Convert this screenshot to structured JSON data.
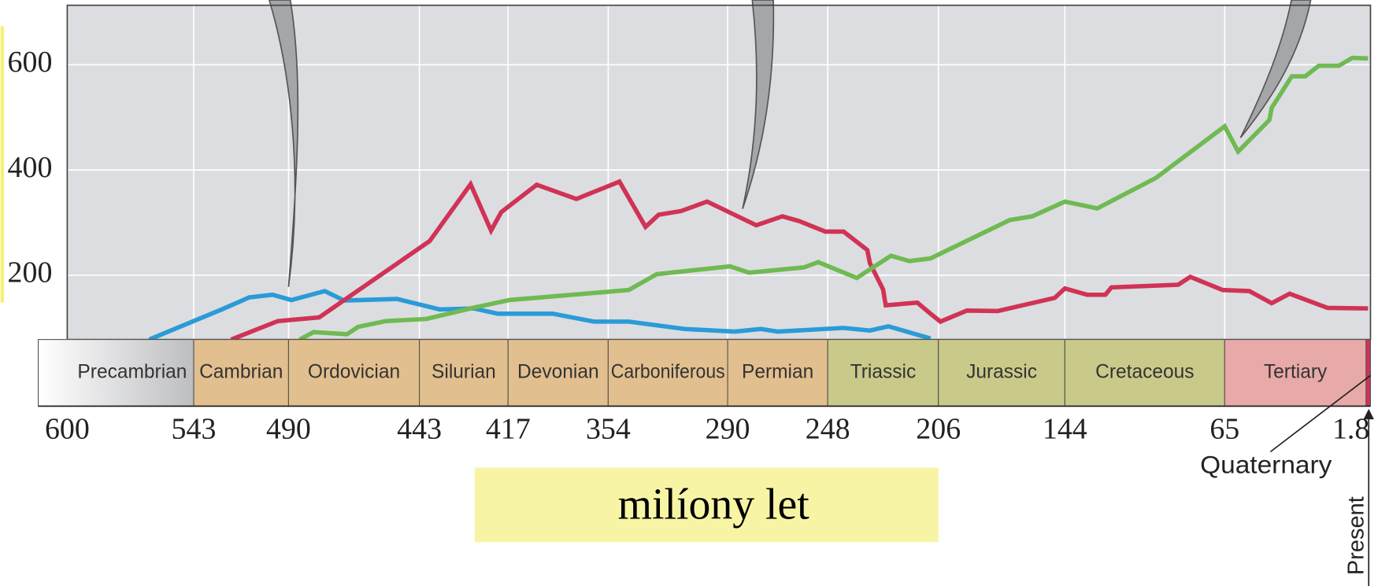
{
  "chart_data": {
    "type": "line",
    "x_label": "milíony let",
    "ylim": [
      78,
      713
    ],
    "yticks": [
      200,
      400,
      600
    ],
    "xticks": [
      600,
      543,
      490,
      443,
      417,
      354,
      290,
      248,
      206,
      144,
      65,
      1.8,
      {
        "value": 0,
        "label": "Present"
      }
    ],
    "grid": true,
    "periods": [
      {
        "name": "Precambrian",
        "color": "#bdbec1",
        "fade": true
      },
      {
        "name": "Cambrian",
        "color": "#e2bf8e"
      },
      {
        "name": "Ordovician",
        "color": "#e2bf8e"
      },
      {
        "name": "Silurian",
        "color": "#e2bf8e"
      },
      {
        "name": "Devonian",
        "color": "#e2bf8e"
      },
      {
        "name": "Carboniferous",
        "color": "#e2bf8e"
      },
      {
        "name": "Permian",
        "color": "#e2bf8e"
      },
      {
        "name": "Triassic",
        "color": "#c9c98a"
      },
      {
        "name": "Jurassic",
        "color": "#c9c98a"
      },
      {
        "name": "Cretaceous",
        "color": "#c9c98a"
      },
      {
        "name": "Tertiary",
        "color": "#e8a9a9"
      },
      {
        "name": "Quaternary",
        "color": "#d03355"
      }
    ],
    "series": [
      {
        "color": "#2a9bd8",
        "x": [
          563,
          526,
          512,
          499,
          489,
          477,
          470,
          451,
          437,
          427,
          420,
          389,
          363,
          343,
          313,
          287,
          276,
          269,
          242,
          232,
          225,
          209
        ],
        "values": [
          78,
          137,
          158,
          163,
          153,
          170,
          152,
          155,
          135,
          137,
          127,
          127,
          112,
          112,
          98,
          93,
          98,
          93,
          100,
          95,
          103,
          80
        ]
      },
      {
        "color": "#d03355",
        "x": [
          522,
          496,
          479,
          440,
          428,
          422,
          419,
          399,
          374,
          348,
          334,
          327,
          315,
          301,
          278,
          267,
          260,
          249,
          242,
          233,
          232,
          227,
          226,
          214,
          209,
          205,
          192,
          177,
          149,
          144,
          133,
          124,
          121,
          88,
          82,
          66,
          54,
          44,
          36,
          19,
          1
        ],
        "values": [
          78,
          113,
          120,
          265,
          373,
          285,
          320,
          372,
          345,
          378,
          292,
          315,
          322,
          340,
          295,
          312,
          303,
          283,
          283,
          248,
          223,
          173,
          143,
          148,
          127,
          112,
          133,
          132,
          157,
          175,
          163,
          163,
          177,
          182,
          197,
          172,
          170,
          147,
          165,
          138,
          137
        ]
      },
      {
        "color": "#6fba52",
        "x": [
          486,
          481,
          469,
          465,
          455,
          441,
          426,
          416,
          343,
          328,
          289,
          281,
          258,
          252,
          237,
          224,
          217,
          209,
          171,
          160,
          144,
          128,
          99,
          65,
          59,
          45,
          44,
          35,
          29,
          23,
          14,
          8,
          1
        ],
        "values": [
          78,
          92,
          88,
          102,
          113,
          117,
          140,
          153,
          172,
          202,
          217,
          205,
          215,
          225,
          195,
          237,
          227,
          232,
          305,
          312,
          340,
          327,
          385,
          483,
          435,
          495,
          518,
          578,
          578,
          598,
          598,
          613,
          612
        ]
      }
    ]
  }
}
